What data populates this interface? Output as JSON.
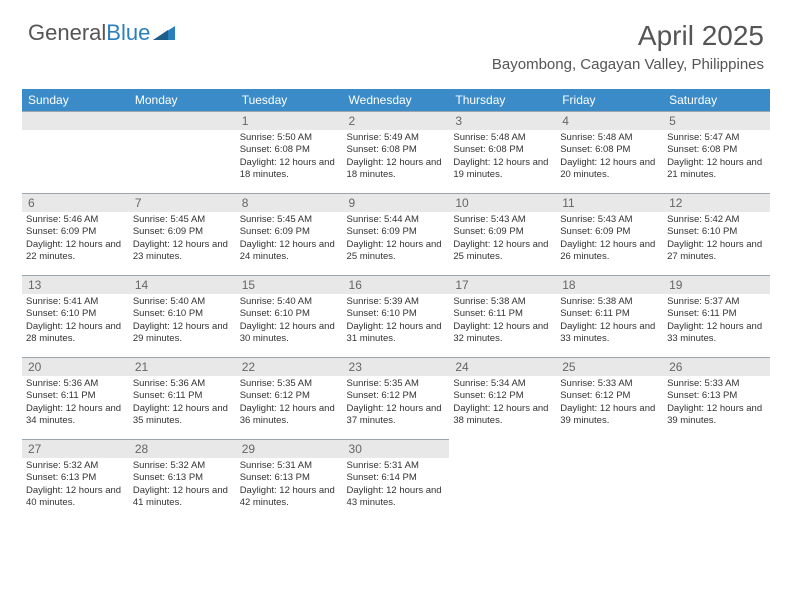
{
  "logo": {
    "text1": "General",
    "text2": "Blue"
  },
  "title": "April 2025",
  "location": "Bayombong, Cagayan Valley, Philippines",
  "colors": {
    "header_bg": "#3b8bc9",
    "header_fg": "#ffffff",
    "daynum_bg": "#e8e8e8",
    "daynum_border": "#9aa5ad",
    "text": "#333333",
    "title_color": "#555555"
  },
  "day_headers": [
    "Sunday",
    "Monday",
    "Tuesday",
    "Wednesday",
    "Thursday",
    "Friday",
    "Saturday"
  ],
  "weeks": [
    [
      {
        "n": "",
        "sr": "",
        "ss": "",
        "dl": ""
      },
      {
        "n": "",
        "sr": "",
        "ss": "",
        "dl": ""
      },
      {
        "n": "1",
        "sr": "Sunrise: 5:50 AM",
        "ss": "Sunset: 6:08 PM",
        "dl": "Daylight: 12 hours and 18 minutes."
      },
      {
        "n": "2",
        "sr": "Sunrise: 5:49 AM",
        "ss": "Sunset: 6:08 PM",
        "dl": "Daylight: 12 hours and 18 minutes."
      },
      {
        "n": "3",
        "sr": "Sunrise: 5:48 AM",
        "ss": "Sunset: 6:08 PM",
        "dl": "Daylight: 12 hours and 19 minutes."
      },
      {
        "n": "4",
        "sr": "Sunrise: 5:48 AM",
        "ss": "Sunset: 6:08 PM",
        "dl": "Daylight: 12 hours and 20 minutes."
      },
      {
        "n": "5",
        "sr": "Sunrise: 5:47 AM",
        "ss": "Sunset: 6:08 PM",
        "dl": "Daylight: 12 hours and 21 minutes."
      }
    ],
    [
      {
        "n": "6",
        "sr": "Sunrise: 5:46 AM",
        "ss": "Sunset: 6:09 PM",
        "dl": "Daylight: 12 hours and 22 minutes."
      },
      {
        "n": "7",
        "sr": "Sunrise: 5:45 AM",
        "ss": "Sunset: 6:09 PM",
        "dl": "Daylight: 12 hours and 23 minutes."
      },
      {
        "n": "8",
        "sr": "Sunrise: 5:45 AM",
        "ss": "Sunset: 6:09 PM",
        "dl": "Daylight: 12 hours and 24 minutes."
      },
      {
        "n": "9",
        "sr": "Sunrise: 5:44 AM",
        "ss": "Sunset: 6:09 PM",
        "dl": "Daylight: 12 hours and 25 minutes."
      },
      {
        "n": "10",
        "sr": "Sunrise: 5:43 AM",
        "ss": "Sunset: 6:09 PM",
        "dl": "Daylight: 12 hours and 25 minutes."
      },
      {
        "n": "11",
        "sr": "Sunrise: 5:43 AM",
        "ss": "Sunset: 6:09 PM",
        "dl": "Daylight: 12 hours and 26 minutes."
      },
      {
        "n": "12",
        "sr": "Sunrise: 5:42 AM",
        "ss": "Sunset: 6:10 PM",
        "dl": "Daylight: 12 hours and 27 minutes."
      }
    ],
    [
      {
        "n": "13",
        "sr": "Sunrise: 5:41 AM",
        "ss": "Sunset: 6:10 PM",
        "dl": "Daylight: 12 hours and 28 minutes."
      },
      {
        "n": "14",
        "sr": "Sunrise: 5:40 AM",
        "ss": "Sunset: 6:10 PM",
        "dl": "Daylight: 12 hours and 29 minutes."
      },
      {
        "n": "15",
        "sr": "Sunrise: 5:40 AM",
        "ss": "Sunset: 6:10 PM",
        "dl": "Daylight: 12 hours and 30 minutes."
      },
      {
        "n": "16",
        "sr": "Sunrise: 5:39 AM",
        "ss": "Sunset: 6:10 PM",
        "dl": "Daylight: 12 hours and 31 minutes."
      },
      {
        "n": "17",
        "sr": "Sunrise: 5:38 AM",
        "ss": "Sunset: 6:11 PM",
        "dl": "Daylight: 12 hours and 32 minutes."
      },
      {
        "n": "18",
        "sr": "Sunrise: 5:38 AM",
        "ss": "Sunset: 6:11 PM",
        "dl": "Daylight: 12 hours and 33 minutes."
      },
      {
        "n": "19",
        "sr": "Sunrise: 5:37 AM",
        "ss": "Sunset: 6:11 PM",
        "dl": "Daylight: 12 hours and 33 minutes."
      }
    ],
    [
      {
        "n": "20",
        "sr": "Sunrise: 5:36 AM",
        "ss": "Sunset: 6:11 PM",
        "dl": "Daylight: 12 hours and 34 minutes."
      },
      {
        "n": "21",
        "sr": "Sunrise: 5:36 AM",
        "ss": "Sunset: 6:11 PM",
        "dl": "Daylight: 12 hours and 35 minutes."
      },
      {
        "n": "22",
        "sr": "Sunrise: 5:35 AM",
        "ss": "Sunset: 6:12 PM",
        "dl": "Daylight: 12 hours and 36 minutes."
      },
      {
        "n": "23",
        "sr": "Sunrise: 5:35 AM",
        "ss": "Sunset: 6:12 PM",
        "dl": "Daylight: 12 hours and 37 minutes."
      },
      {
        "n": "24",
        "sr": "Sunrise: 5:34 AM",
        "ss": "Sunset: 6:12 PM",
        "dl": "Daylight: 12 hours and 38 minutes."
      },
      {
        "n": "25",
        "sr": "Sunrise: 5:33 AM",
        "ss": "Sunset: 6:12 PM",
        "dl": "Daylight: 12 hours and 39 minutes."
      },
      {
        "n": "26",
        "sr": "Sunrise: 5:33 AM",
        "ss": "Sunset: 6:13 PM",
        "dl": "Daylight: 12 hours and 39 minutes."
      }
    ],
    [
      {
        "n": "27",
        "sr": "Sunrise: 5:32 AM",
        "ss": "Sunset: 6:13 PM",
        "dl": "Daylight: 12 hours and 40 minutes."
      },
      {
        "n": "28",
        "sr": "Sunrise: 5:32 AM",
        "ss": "Sunset: 6:13 PM",
        "dl": "Daylight: 12 hours and 41 minutes."
      },
      {
        "n": "29",
        "sr": "Sunrise: 5:31 AM",
        "ss": "Sunset: 6:13 PM",
        "dl": "Daylight: 12 hours and 42 minutes."
      },
      {
        "n": "30",
        "sr": "Sunrise: 5:31 AM",
        "ss": "Sunset: 6:14 PM",
        "dl": "Daylight: 12 hours and 43 minutes."
      },
      {
        "n": "",
        "sr": "",
        "ss": "",
        "dl": ""
      },
      {
        "n": "",
        "sr": "",
        "ss": "",
        "dl": ""
      },
      {
        "n": "",
        "sr": "",
        "ss": "",
        "dl": ""
      }
    ]
  ]
}
